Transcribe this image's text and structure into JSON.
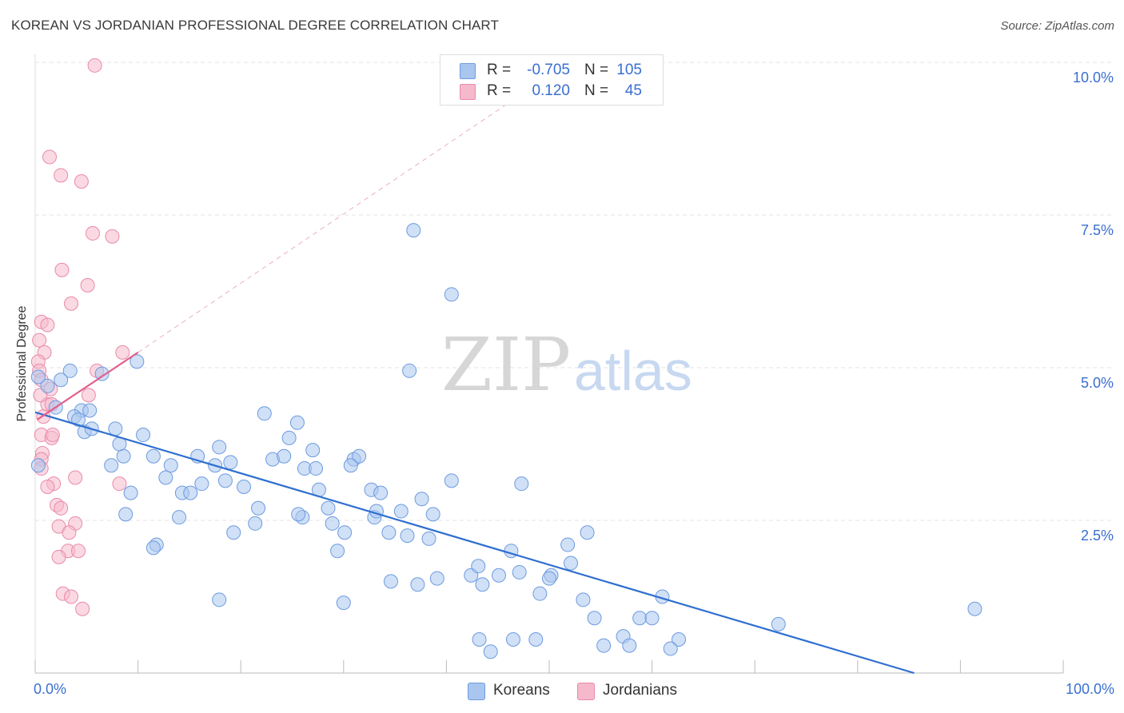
{
  "title": "KOREAN VS JORDANIAN PROFESSIONAL DEGREE CORRELATION CHART",
  "source": "Source: ZipAtlas.com",
  "watermark": {
    "zip": "ZIP",
    "atlas": "atlas"
  },
  "legend": {
    "rows": [
      {
        "r_label": "R =",
        "r_value": "-0.705",
        "n_label": "N =",
        "n_value": "105",
        "color": "#a9c6ef"
      },
      {
        "r_label": "R =",
        "r_value": "0.120",
        "n_label": "N =",
        "n_value": "45",
        "color": "#f6b9cc"
      }
    ]
  },
  "bottom_legend": [
    {
      "label": "Koreans",
      "color": "#a9c6ef"
    },
    {
      "label": "Jordanians",
      "color": "#f6b9cc"
    }
  ],
  "x_tick_labels": {
    "left": "0.0%",
    "right": "100.0%"
  },
  "colors": {
    "korean_fill": "#a9c6ef",
    "korean_stroke": "#6d9be0",
    "korean_line": "#2f6fd0",
    "jordanian_fill": "#f6b9cc",
    "jordanian_stroke": "#ea8aa8",
    "jordanian_line": "#e2608e",
    "grid": "#e3e3e3",
    "tick_label": "#3a6fd0"
  },
  "chart_data": {
    "type": "scatter",
    "title": "KOREAN VS JORDANIAN PROFESSIONAL DEGREE CORRELATION CHART",
    "xlabel": "",
    "ylabel": "Professional Degree",
    "xlim": [
      0,
      100
    ],
    "ylim": [
      0,
      10.3
    ],
    "y_ticks": [
      {
        "value": 2.5,
        "label": "2.5%"
      },
      {
        "value": 5.0,
        "label": "5.0%"
      },
      {
        "value": 7.5,
        "label": "7.5%"
      },
      {
        "value": 10.0,
        "label": "10.0%"
      }
    ],
    "x_tick_marks": [
      0,
      10,
      20,
      30,
      40,
      50,
      60,
      70,
      80,
      90,
      100
    ],
    "grid": true,
    "legend_position": "top-center",
    "series": [
      {
        "name": "Koreans",
        "r": -0.705,
        "n": 105,
        "trend": {
          "x": [
            0,
            85.5
          ],
          "y": [
            4.27,
            0.0
          ]
        },
        "points": [
          [
            0.3,
            3.4
          ],
          [
            0.3,
            4.85
          ],
          [
            1.2,
            4.7
          ],
          [
            2.5,
            4.8
          ],
          [
            3.4,
            4.95
          ],
          [
            2.0,
            4.35
          ],
          [
            4.5,
            4.3
          ],
          [
            5.3,
            4.3
          ],
          [
            6.5,
            4.9
          ],
          [
            9.9,
            5.1
          ],
          [
            3.8,
            4.2
          ],
          [
            4.2,
            4.15
          ],
          [
            4.8,
            3.95
          ],
          [
            5.5,
            4.0
          ],
          [
            7.8,
            4.0
          ],
          [
            8.2,
            3.75
          ],
          [
            8.6,
            3.55
          ],
          [
            10.5,
            3.9
          ],
          [
            11.5,
            3.55
          ],
          [
            7.4,
            3.4
          ],
          [
            9.3,
            2.95
          ],
          [
            12.7,
            3.2
          ],
          [
            13.2,
            3.4
          ],
          [
            14.3,
            2.95
          ],
          [
            15.1,
            2.95
          ],
          [
            15.8,
            3.55
          ],
          [
            16.2,
            3.1
          ],
          [
            17.5,
            3.4
          ],
          [
            17.9,
            3.7
          ],
          [
            18.5,
            3.15
          ],
          [
            19.0,
            3.45
          ],
          [
            20.3,
            3.05
          ],
          [
            19.3,
            2.3
          ],
          [
            21.4,
            2.45
          ],
          [
            21.7,
            2.7
          ],
          [
            22.3,
            4.25
          ],
          [
            23.1,
            3.5
          ],
          [
            24.2,
            3.55
          ],
          [
            24.7,
            3.85
          ],
          [
            25.5,
            4.1
          ],
          [
            26.2,
            3.35
          ],
          [
            27.0,
            3.65
          ],
          [
            27.3,
            3.35
          ],
          [
            26.0,
            2.55
          ],
          [
            25.6,
            2.6
          ],
          [
            27.6,
            3.0
          ],
          [
            28.5,
            2.7
          ],
          [
            28.9,
            2.45
          ],
          [
            29.4,
            2.0
          ],
          [
            30.1,
            2.3
          ],
          [
            31.0,
            3.5
          ],
          [
            31.5,
            3.55
          ],
          [
            30.7,
            3.4
          ],
          [
            32.7,
            3.0
          ],
          [
            33.6,
            2.95
          ],
          [
            33.0,
            2.55
          ],
          [
            33.2,
            2.65
          ],
          [
            34.4,
            2.3
          ],
          [
            35.6,
            2.65
          ],
          [
            36.2,
            2.25
          ],
          [
            37.6,
            2.85
          ],
          [
            38.3,
            2.2
          ],
          [
            38.7,
            2.6
          ],
          [
            39.1,
            1.55
          ],
          [
            40.5,
            3.15
          ],
          [
            34.6,
            1.5
          ],
          [
            36.4,
            4.95
          ],
          [
            36.8,
            7.25
          ],
          [
            40.5,
            6.2
          ],
          [
            42.4,
            1.6
          ],
          [
            43.1,
            1.75
          ],
          [
            43.5,
            1.45
          ],
          [
            45.1,
            1.6
          ],
          [
            46.3,
            2.0
          ],
          [
            47.1,
            1.65
          ],
          [
            47.3,
            3.1
          ],
          [
            49.1,
            1.3
          ],
          [
            50.2,
            1.6
          ],
          [
            50.0,
            1.55
          ],
          [
            51.8,
            2.1
          ],
          [
            52.1,
            1.8
          ],
          [
            53.3,
            1.2
          ],
          [
            54.4,
            0.9
          ],
          [
            55.3,
            0.45
          ],
          [
            57.2,
            0.6
          ],
          [
            57.8,
            0.45
          ],
          [
            58.8,
            0.9
          ],
          [
            60.0,
            0.9
          ],
          [
            61.0,
            1.25
          ],
          [
            62.6,
            0.55
          ],
          [
            61.8,
            0.4
          ],
          [
            43.2,
            0.55
          ],
          [
            46.5,
            0.55
          ],
          [
            48.7,
            0.55
          ],
          [
            53.7,
            2.3
          ],
          [
            72.3,
            0.8
          ],
          [
            91.4,
            1.05
          ],
          [
            37.2,
            1.45
          ],
          [
            30.0,
            1.15
          ],
          [
            44.3,
            0.35
          ],
          [
            17.9,
            1.2
          ],
          [
            11.8,
            2.1
          ],
          [
            11.5,
            2.05
          ],
          [
            8.8,
            2.6
          ],
          [
            14.0,
            2.55
          ]
        ]
      },
      {
        "name": "Jordanians",
        "r": 0.12,
        "n": 45,
        "trend": {
          "x": [
            0.2,
            10.0
          ],
          "y": [
            4.15,
            5.25
          ]
        },
        "trend_extension": {
          "x": [
            10.0,
            47.5
          ],
          "y": [
            5.25,
            9.5
          ]
        },
        "points": [
          [
            5.8,
            9.95
          ],
          [
            1.4,
            8.45
          ],
          [
            2.5,
            8.15
          ],
          [
            4.5,
            8.05
          ],
          [
            5.6,
            7.2
          ],
          [
            7.5,
            7.15
          ],
          [
            2.6,
            6.6
          ],
          [
            5.1,
            6.35
          ],
          [
            3.5,
            6.05
          ],
          [
            0.6,
            5.75
          ],
          [
            1.2,
            5.7
          ],
          [
            0.4,
            5.45
          ],
          [
            0.9,
            5.25
          ],
          [
            0.3,
            5.1
          ],
          [
            0.4,
            4.95
          ],
          [
            0.6,
            4.8
          ],
          [
            1.5,
            4.65
          ],
          [
            6.0,
            4.95
          ],
          [
            8.5,
            5.25
          ],
          [
            1.2,
            4.4
          ],
          [
            1.6,
            4.4
          ],
          [
            0.8,
            4.2
          ],
          [
            5.2,
            4.55
          ],
          [
            0.6,
            3.9
          ],
          [
            1.6,
            3.85
          ],
          [
            1.7,
            3.9
          ],
          [
            0.7,
            3.6
          ],
          [
            0.6,
            3.5
          ],
          [
            3.9,
            3.2
          ],
          [
            0.6,
            3.35
          ],
          [
            1.8,
            3.1
          ],
          [
            1.2,
            3.05
          ],
          [
            8.2,
            3.1
          ],
          [
            2.1,
            2.75
          ],
          [
            2.5,
            2.7
          ],
          [
            3.9,
            2.45
          ],
          [
            2.3,
            2.4
          ],
          [
            3.3,
            2.3
          ],
          [
            3.2,
            2.0
          ],
          [
            4.2,
            2.0
          ],
          [
            2.3,
            1.9
          ],
          [
            2.7,
            1.3
          ],
          [
            3.5,
            1.25
          ],
          [
            4.6,
            1.05
          ],
          [
            0.5,
            4.55
          ]
        ]
      }
    ]
  }
}
